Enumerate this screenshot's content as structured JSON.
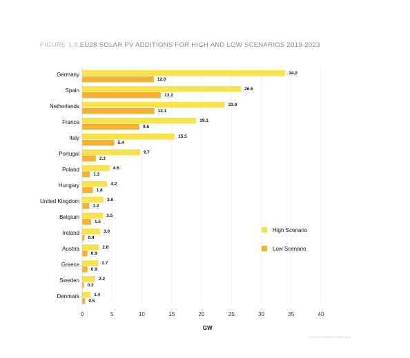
{
  "title": {
    "figure": "FIGURE 1.8",
    "text": "EU28 SOLAR PV ADDITIONS FOR HIGH AND LOW SCENARIOS 2019-2023"
  },
  "colors": {
    "high": "#fae24c",
    "low": "#f3b233"
  },
  "credit": "© SOLARPOWER EUROPE 2019",
  "chart_data": {
    "type": "bar",
    "orientation": "horizontal",
    "categories": [
      "Germany",
      "Spain",
      "Netherlands",
      "France",
      "Italy",
      "Portugal",
      "Poland",
      "Hungary",
      "United Kingdom",
      "Belgium",
      "Ireland",
      "Austria",
      "Greece",
      "Sweden",
      "Denmark"
    ],
    "series": [
      {
        "name": "High Scenario",
        "values": [
          34.0,
          26.6,
          23.9,
          19.1,
          15.5,
          9.7,
          4.6,
          4.2,
          3.6,
          3.5,
          3.0,
          2.8,
          2.7,
          2.2,
          1.4
        ]
      },
      {
        "name": "Low Scenario",
        "values": [
          12.0,
          13.2,
          12.1,
          9.6,
          5.4,
          2.3,
          1.3,
          1.8,
          1.2,
          1.5,
          0.4,
          0.9,
          0.9,
          0.3,
          0.5
        ]
      }
    ],
    "value_labels": {
      "high": [
        "34.0",
        "26.6",
        "23.9",
        "19.1",
        "15.5",
        "9.7",
        "4.6",
        "4.2",
        "3.6",
        "3.5",
        "3.0",
        "2.8",
        "2.7",
        "2.2",
        "1.4"
      ],
      "low": [
        "12.0",
        "13.2",
        "12.1",
        "9.6",
        "5.4",
        "2.3",
        "1.3",
        "1.8",
        "1.2",
        "1.5",
        "0.4",
        "0.9",
        "0.9",
        "0.3",
        "0.5"
      ]
    },
    "xlim": [
      0,
      40
    ],
    "xticks": [
      0,
      5,
      10,
      15,
      20,
      25,
      30,
      35,
      40
    ],
    "xlabel": "GW",
    "ylabel": "",
    "legend": {
      "position": "right",
      "entries": [
        "High Scenario",
        "Low Scenario"
      ]
    },
    "grid": true
  }
}
